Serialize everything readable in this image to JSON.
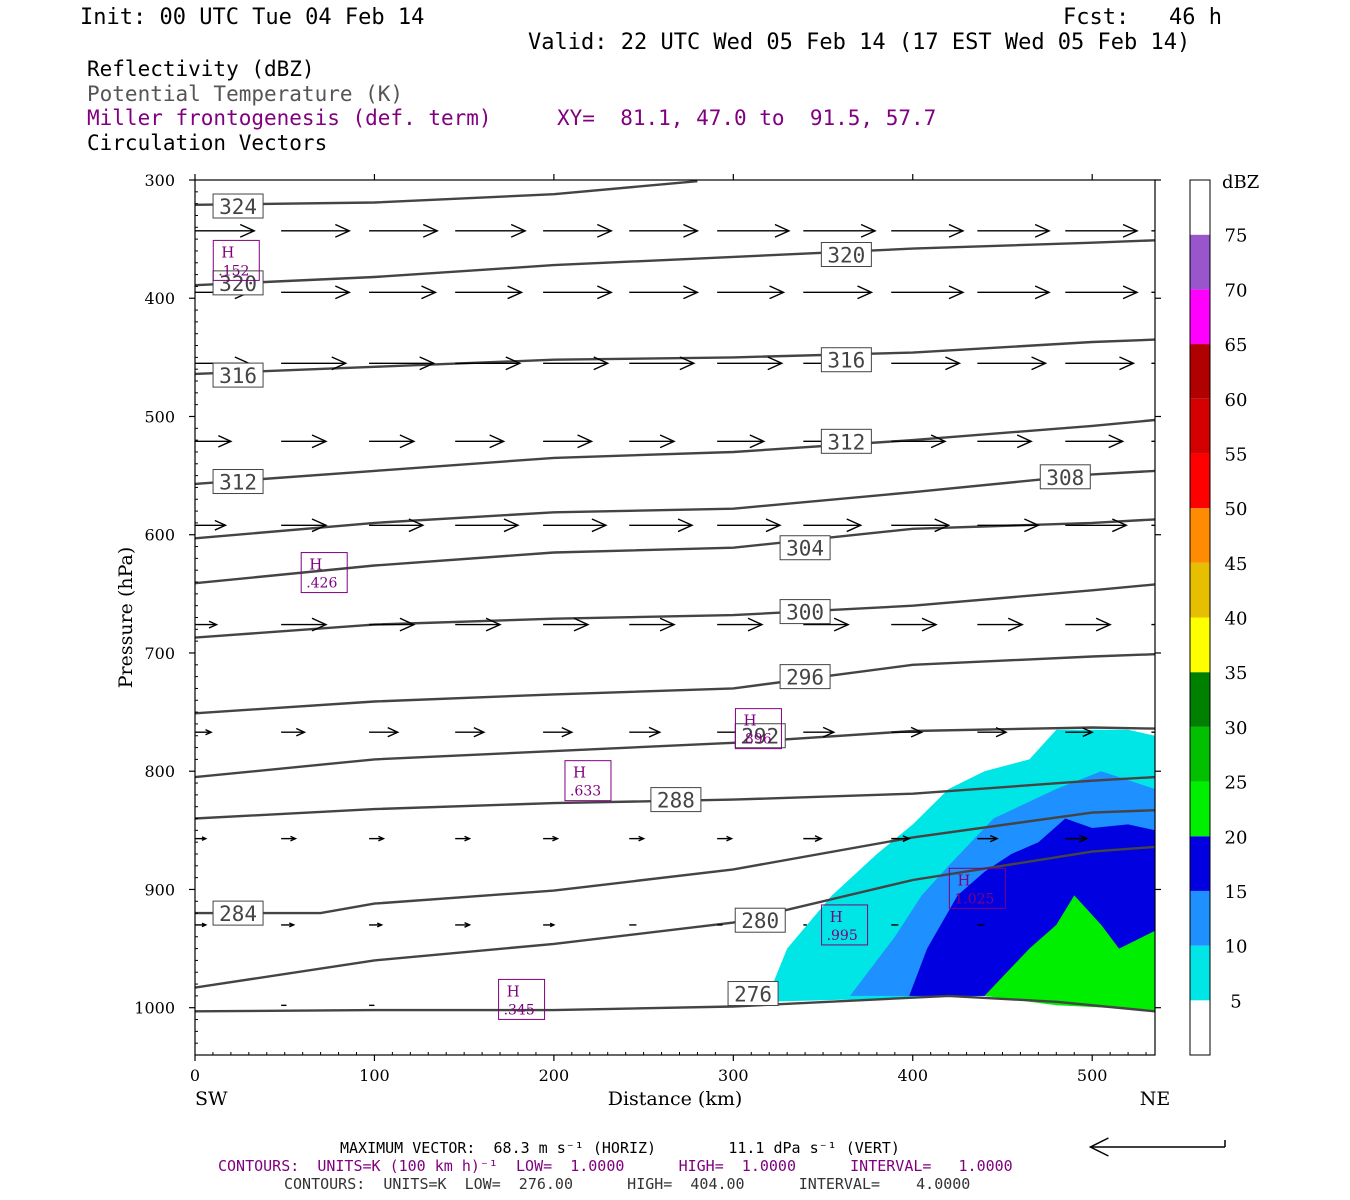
{
  "header": {
    "init": "Init: 00 UTC Tue 04 Feb 14",
    "fcst": "Fcst:   46 h",
    "valid": "Valid: 22 UTC Wed 05 Feb 14 (17 EST Wed 05 Feb 14)",
    "field1": "Reflectivity (dBZ)",
    "field2": "Potential Temperature (K)",
    "field3": "Miller frontogenesis (def. term)",
    "xy": "XY=  81.1, 47.0 to  91.5, 57.7",
    "field4": "Circulation Vectors"
  },
  "footer": {
    "maxvec": "MAXIMUM VECTOR:  68.3 m s⁻¹ (HORIZ)        11.1 dPa s⁻¹ (VERT)",
    "contours1": "CONTOURS:  UNITS=K (100 km h)⁻¹  LOW=  1.0000      HIGH=  1.0000      INTERVAL=   1.0000",
    "contours2": "CONTOURS:  UNITS=K  LOW=  276.00      HIGH=  404.00      INTERVAL=    4.0000"
  },
  "chart_data": {
    "type": "cross-section",
    "xlabel": "Distance (km)",
    "ylabel": "Pressure (hPa)",
    "xlim": [
      0,
      535
    ],
    "ylim": [
      1040,
      300
    ],
    "x_ticks": [
      0,
      100,
      200,
      300,
      400,
      500
    ],
    "y_ticks": [
      300,
      400,
      500,
      600,
      700,
      800,
      900,
      1000
    ],
    "x_end_labels": {
      "left": "SW",
      "right": "NE"
    },
    "colorbar": {
      "title": "dBZ",
      "levels": [
        5,
        10,
        15,
        20,
        25,
        30,
        35,
        40,
        45,
        50,
        55,
        60,
        65,
        70,
        75
      ],
      "colors": [
        "#ffffff",
        "#00e6e6",
        "#1e90ff",
        "#0000e0",
        "#00ee00",
        "#00c000",
        "#008000",
        "#ffff00",
        "#e6c000",
        "#ff8c00",
        "#ff0000",
        "#d40000",
        "#b00000",
        "#ff00ff",
        "#9955cc",
        "#ffffff"
      ]
    },
    "isentropes": [
      {
        "label": "276",
        "points": [
          [
            0,
            1003
          ],
          [
            100,
            1002
          ],
          [
            200,
            1002
          ],
          [
            300,
            999
          ],
          [
            420,
            990
          ],
          [
            480,
            995
          ],
          [
            535,
            1003
          ]
        ]
      },
      {
        "label": "280",
        "points": [
          [
            0,
            983
          ],
          [
            100,
            960
          ],
          [
            200,
            946
          ],
          [
            300,
            928
          ],
          [
            400,
            892
          ],
          [
            500,
            868
          ],
          [
            535,
            864
          ]
        ]
      },
      {
        "label": "284",
        "points": [
          [
            0,
            920
          ],
          [
            70,
            920
          ],
          [
            100,
            912
          ],
          [
            200,
            901
          ],
          [
            300,
            883
          ],
          [
            400,
            856
          ],
          [
            500,
            835
          ],
          [
            535,
            833
          ]
        ]
      },
      {
        "label": "288",
        "points": [
          [
            0,
            840
          ],
          [
            100,
            832
          ],
          [
            200,
            827
          ],
          [
            300,
            824
          ],
          [
            400,
            819
          ],
          [
            500,
            808
          ],
          [
            535,
            805
          ]
        ]
      },
      {
        "label": "292",
        "points": [
          [
            0,
            805
          ],
          [
            100,
            790
          ],
          [
            200,
            783
          ],
          [
            300,
            776
          ],
          [
            400,
            766
          ],
          [
            500,
            763
          ],
          [
            535,
            764
          ]
        ]
      },
      {
        "label": "296",
        "points": [
          [
            0,
            751
          ],
          [
            100,
            741
          ],
          [
            200,
            735
          ],
          [
            300,
            730
          ],
          [
            400,
            710
          ],
          [
            500,
            703
          ],
          [
            535,
            701
          ]
        ]
      },
      {
        "label": "300",
        "points": [
          [
            0,
            687
          ],
          [
            100,
            676
          ],
          [
            200,
            671
          ],
          [
            300,
            668
          ],
          [
            400,
            660
          ],
          [
            500,
            647
          ],
          [
            535,
            642
          ]
        ]
      },
      {
        "label": "304",
        "points": [
          [
            0,
            641
          ],
          [
            100,
            626
          ],
          [
            200,
            615
          ],
          [
            300,
            611
          ],
          [
            400,
            595
          ],
          [
            500,
            590
          ],
          [
            535,
            587
          ]
        ]
      },
      {
        "label": "308",
        "points": [
          [
            0,
            603
          ],
          [
            100,
            590
          ],
          [
            200,
            581
          ],
          [
            300,
            578
          ],
          [
            400,
            564
          ],
          [
            500,
            549
          ],
          [
            535,
            546
          ]
        ]
      },
      {
        "label": "312",
        "points": [
          [
            0,
            557
          ],
          [
            100,
            546
          ],
          [
            200,
            535
          ],
          [
            300,
            530
          ],
          [
            400,
            520
          ],
          [
            500,
            508
          ],
          [
            535,
            503
          ]
        ]
      },
      {
        "label": "316",
        "points": [
          [
            0,
            464
          ],
          [
            100,
            458
          ],
          [
            200,
            452
          ],
          [
            300,
            450
          ],
          [
            400,
            446
          ],
          [
            500,
            437
          ],
          [
            535,
            435
          ]
        ]
      },
      {
        "label": "320",
        "points": [
          [
            0,
            389
          ],
          [
            100,
            382
          ],
          [
            200,
            372
          ],
          [
            300,
            365
          ],
          [
            400,
            358
          ],
          [
            500,
            353
          ],
          [
            535,
            351
          ]
        ]
      },
      {
        "label": "324",
        "points": [
          [
            0,
            321
          ],
          [
            100,
            319
          ],
          [
            200,
            312
          ],
          [
            280,
            301
          ]
        ]
      }
    ],
    "isentrope_labels": [
      {
        "text": "324",
        "x": 24,
        "p": 322
      },
      {
        "text": "320",
        "x": 24,
        "p": 387
      },
      {
        "text": "320",
        "x": 363,
        "p": 363
      },
      {
        "text": "316",
        "x": 24,
        "p": 465
      },
      {
        "text": "316",
        "x": 363,
        "p": 452
      },
      {
        "text": "312",
        "x": 24,
        "p": 555
      },
      {
        "text": "312",
        "x": 363,
        "p": 521
      },
      {
        "text": "308",
        "x": 485,
        "p": 551
      },
      {
        "text": "304",
        "x": 340,
        "p": 611
      },
      {
        "text": "300",
        "x": 340,
        "p": 665
      },
      {
        "text": "296",
        "x": 340,
        "p": 720
      },
      {
        "text": "292",
        "x": 315,
        "p": 770
      },
      {
        "text": "288",
        "x": 268,
        "p": 824
      },
      {
        "text": "284",
        "x": 24,
        "p": 920
      },
      {
        "text": "280",
        "x": 315,
        "p": 926
      },
      {
        "text": "276",
        "x": 311,
        "p": 988
      }
    ],
    "frontogenesis_maxima": [
      {
        "label": "H",
        "value": ".152",
        "x": 23,
        "p": 368
      },
      {
        "label": "H",
        "value": ".426",
        "x": 72,
        "p": 632
      },
      {
        "label": "H",
        "value": ".896",
        "x": 314,
        "p": 764
      },
      {
        "label": "H",
        "value": ".633",
        "x": 219,
        "p": 808
      },
      {
        "label": "H",
        "value": "1.025",
        "x": 436,
        "p": 899
      },
      {
        "label": "H",
        "value": ".995",
        "x": 362,
        "p": 930
      },
      {
        "label": "H",
        "value": ".345",
        "x": 182,
        "p": 993
      }
    ],
    "reflectivity": [
      {
        "min_dbz": 5,
        "color": "#00e6e6",
        "polygon": [
          [
            318,
            995
          ],
          [
            330,
            950
          ],
          [
            355,
            905
          ],
          [
            380,
            870
          ],
          [
            400,
            845
          ],
          [
            420,
            815
          ],
          [
            440,
            800
          ],
          [
            465,
            790
          ],
          [
            480,
            765
          ],
          [
            520,
            765
          ],
          [
            535,
            770
          ],
          [
            535,
            1000
          ],
          [
            500,
            998
          ],
          [
            440,
            990
          ],
          [
            318,
            995
          ]
        ]
      },
      {
        "min_dbz": 10,
        "color": "#1e90ff",
        "polygon": [
          [
            365,
            990
          ],
          [
            390,
            940
          ],
          [
            405,
            905
          ],
          [
            420,
            880
          ],
          [
            445,
            840
          ],
          [
            480,
            815
          ],
          [
            505,
            800
          ],
          [
            535,
            815
          ],
          [
            535,
            1000
          ],
          [
            500,
            998
          ],
          [
            440,
            990
          ],
          [
            365,
            990
          ]
        ]
      },
      {
        "min_dbz": 15,
        "color": "#0000e0",
        "polygon": [
          [
            398,
            990
          ],
          [
            408,
            950
          ],
          [
            425,
            905
          ],
          [
            440,
            885
          ],
          [
            455,
            870
          ],
          [
            470,
            860
          ],
          [
            485,
            840
          ],
          [
            500,
            848
          ],
          [
            520,
            845
          ],
          [
            535,
            850
          ],
          [
            535,
            1000
          ],
          [
            500,
            998
          ],
          [
            440,
            990
          ],
          [
            398,
            990
          ]
        ]
      },
      {
        "min_dbz": 20,
        "color": "#00ee00",
        "polygon": [
          [
            440,
            990
          ],
          [
            465,
            950
          ],
          [
            480,
            930
          ],
          [
            490,
            905
          ],
          [
            505,
            930
          ],
          [
            515,
            950
          ],
          [
            535,
            935
          ],
          [
            535,
            1002
          ],
          [
            480,
            998
          ],
          [
            440,
            990
          ]
        ]
      }
    ],
    "vector_rows": [
      {
        "p": 343,
        "len_km": [
          33,
          38,
          38,
          39,
          38,
          38,
          40,
          40,
          40,
          40,
          40,
          45
        ]
      },
      {
        "p": 395,
        "len_km": [
          30,
          38,
          37,
          37,
          38,
          38,
          37,
          38,
          40,
          40,
          40,
          45
        ]
      },
      {
        "p": 455,
        "len_km": [
          30,
          36,
          36,
          36,
          36,
          36,
          36,
          37,
          38,
          38,
          38,
          40
        ]
      },
      {
        "p": 521,
        "len_km": [
          20,
          25,
          25,
          27,
          27,
          25,
          26,
          28,
          30,
          30,
          32,
          34
        ]
      },
      {
        "p": 592,
        "len_km": [
          17,
          25,
          30,
          35,
          35,
          35,
          35,
          32,
          32,
          34,
          34,
          34
        ]
      },
      {
        "p": 676,
        "len_km": [
          12,
          25,
          25,
          25,
          25,
          25,
          25,
          25,
          25,
          25,
          25,
          25
        ]
      },
      {
        "p": 767,
        "len_km": [
          9,
          13,
          16,
          16,
          16,
          17,
          17,
          17,
          17,
          16,
          15,
          15
        ]
      },
      {
        "p": 857,
        "len_km": [
          6,
          8,
          8,
          8,
          8,
          8,
          8,
          10,
          10,
          11,
          12,
          0
        ]
      },
      {
        "p": 930,
        "len_km": [
          6,
          7,
          7,
          8,
          6,
          4,
          3,
          2,
          4,
          4,
          0,
          0
        ]
      },
      {
        "p": 998,
        "len_km": [
          0,
          3,
          3,
          0,
          0,
          0,
          0,
          0,
          0,
          0,
          0,
          0
        ]
      }
    ],
    "reference_vector_km": 50
  }
}
